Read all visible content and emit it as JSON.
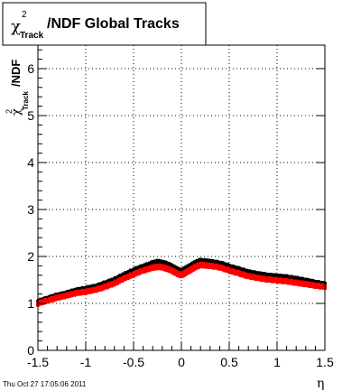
{
  "chart_data": {
    "type": "scatter",
    "title": "/NDF  Global Tracks",
    "title_symbol": "χ",
    "title_sup": "2",
    "title_sub": "Track",
    "ylabel_symbol": "χ",
    "ylabel_sup": "2",
    "ylabel_sub": "Track",
    "ylabel_suffix": "/NDF",
    "xlabel": "η",
    "xlim": [
      -1.5,
      1.5
    ],
    "ylim": [
      0,
      6.5
    ],
    "xticks": [
      "-1.5",
      "-1",
      "-0.5",
      "0",
      "0.5",
      "1",
      "1.5"
    ],
    "yticks": [
      "0",
      "1",
      "2",
      "3",
      "4",
      "5",
      "6"
    ],
    "grid": true,
    "series": [
      {
        "color": "#000000",
        "x": [
          -1.5,
          -1.4,
          -1.3,
          -1.2,
          -1.1,
          -1.0,
          -0.9,
          -0.8,
          -0.7,
          -0.6,
          -0.5,
          -0.4,
          -0.3,
          -0.25,
          -0.2,
          -0.15,
          -0.1,
          -0.05,
          0.0,
          0.05,
          0.1,
          0.15,
          0.2,
          0.25,
          0.3,
          0.4,
          0.5,
          0.6,
          0.7,
          0.8,
          0.9,
          1.0,
          1.1,
          1.2,
          1.3,
          1.4,
          1.5
        ],
        "y": [
          1.03,
          1.1,
          1.16,
          1.21,
          1.27,
          1.31,
          1.35,
          1.42,
          1.5,
          1.6,
          1.7,
          1.78,
          1.85,
          1.88,
          1.86,
          1.83,
          1.78,
          1.72,
          1.68,
          1.74,
          1.8,
          1.86,
          1.9,
          1.89,
          1.88,
          1.85,
          1.78,
          1.72,
          1.66,
          1.62,
          1.59,
          1.57,
          1.55,
          1.52,
          1.48,
          1.44,
          1.4
        ]
      },
      {
        "color": "#ff0000",
        "x": [
          -1.5,
          -1.4,
          -1.3,
          -1.2,
          -1.1,
          -1.0,
          -0.9,
          -0.8,
          -0.7,
          -0.6,
          -0.5,
          -0.4,
          -0.3,
          -0.25,
          -0.2,
          -0.15,
          -0.1,
          -0.05,
          0.0,
          0.05,
          0.1,
          0.15,
          0.2,
          0.25,
          0.3,
          0.4,
          0.5,
          0.6,
          0.7,
          0.8,
          0.9,
          1.0,
          1.1,
          1.2,
          1.3,
          1.4,
          1.5
        ],
        "y": [
          1.0,
          1.06,
          1.12,
          1.17,
          1.22,
          1.25,
          1.29,
          1.35,
          1.43,
          1.53,
          1.62,
          1.7,
          1.76,
          1.78,
          1.77,
          1.74,
          1.7,
          1.64,
          1.6,
          1.66,
          1.72,
          1.78,
          1.82,
          1.81,
          1.8,
          1.77,
          1.7,
          1.64,
          1.58,
          1.54,
          1.51,
          1.49,
          1.47,
          1.44,
          1.41,
          1.38,
          1.35
        ]
      }
    ]
  },
  "footer": {
    "timestamp": "Thu Oct 27 17:05:06 2011"
  }
}
